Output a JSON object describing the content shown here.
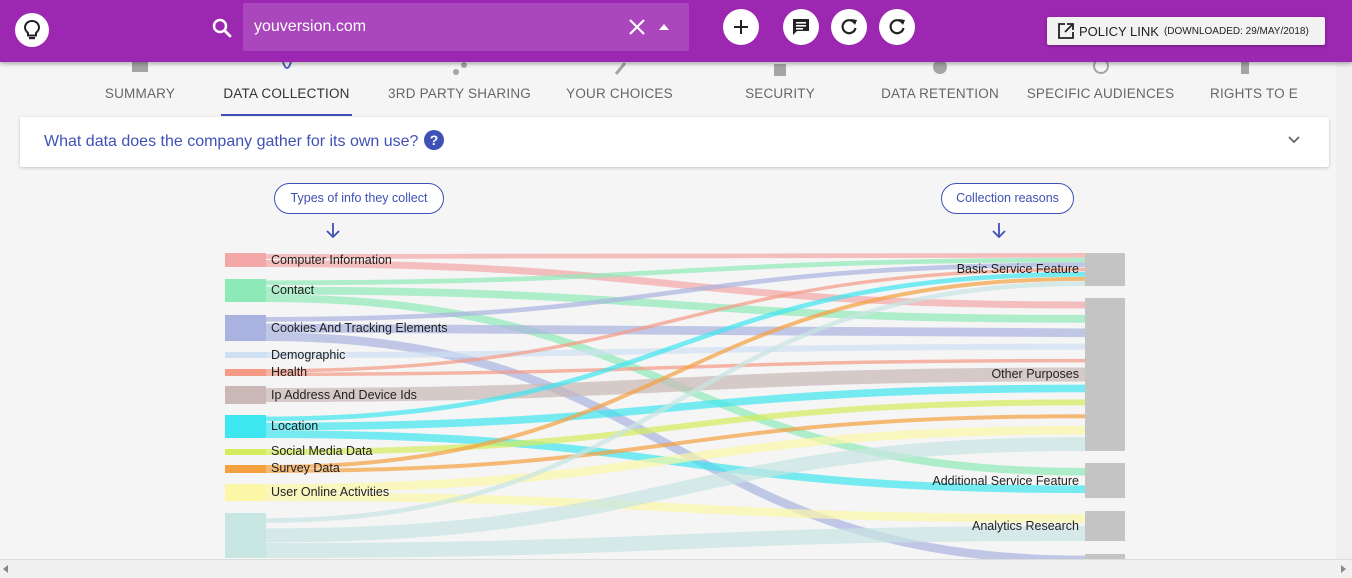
{
  "search": {
    "value": "youversion.com"
  },
  "policy": {
    "label": "POLICY LINK",
    "downloaded": "(DOWNLOADED: 29/MAY/2018)"
  },
  "tabs": [
    {
      "label": "SUMMARY",
      "active": false
    },
    {
      "label": "DATA COLLECTION",
      "active": true
    },
    {
      "label": "3RD PARTY SHARING",
      "active": false
    },
    {
      "label": "YOUR CHOICES",
      "active": false
    },
    {
      "label": "SECURITY",
      "active": false
    },
    {
      "label": "DATA RETENTION",
      "active": false
    },
    {
      "label": "SPECIFIC AUDIENCES",
      "active": false
    },
    {
      "label": "RIGHTS TO E",
      "active": false
    }
  ],
  "question": {
    "text": "What data does the company gather for its own use?",
    "help": "?"
  },
  "pills": {
    "left": "Types of info they collect",
    "right": "Collection reasons"
  },
  "colors": {
    "accent": "#3f51b5",
    "topbar": "#9c27b0",
    "searchbox": "#ab47bc"
  },
  "chart_data": {
    "type": "sankey",
    "sources": [
      {
        "name": "Computer Information",
        "color": "#f4a7a7"
      },
      {
        "name": "Contact",
        "color": "#8ee9b8"
      },
      {
        "name": "Cookies And Tracking Elements",
        "color": "#aab3e0"
      },
      {
        "name": "Demographic",
        "color": "#cfe0f2"
      },
      {
        "name": "Health",
        "color": "#f59a85"
      },
      {
        "name": "Ip Address And Device Ids",
        "color": "#c9b8b6"
      },
      {
        "name": "Location",
        "color": "#3ee6f0"
      },
      {
        "name": "Social Media Data",
        "color": "#d4ec5c"
      },
      {
        "name": "Survey Data",
        "color": "#f5a040"
      },
      {
        "name": "User Online Activities",
        "color": "#fbf7a6"
      },
      {
        "name": "",
        "color": "#c7e6e2"
      }
    ],
    "targets": [
      {
        "name": "Basic Service Feature"
      },
      {
        "name": "Other Purposes"
      },
      {
        "name": "Additional Service Feature"
      },
      {
        "name": "Analytics Research"
      },
      {
        "name": ""
      }
    ],
    "links": [
      {
        "source": 0,
        "target": 0
      },
      {
        "source": 0,
        "target": 1
      },
      {
        "source": 1,
        "target": 0
      },
      {
        "source": 1,
        "target": 1
      },
      {
        "source": 1,
        "target": 2
      },
      {
        "source": 2,
        "target": 0
      },
      {
        "source": 2,
        "target": 1
      },
      {
        "source": 2,
        "target": 4
      },
      {
        "source": 3,
        "target": 1
      },
      {
        "source": 4,
        "target": 0
      },
      {
        "source": 4,
        "target": 1
      },
      {
        "source": 5,
        "target": 1
      },
      {
        "source": 6,
        "target": 0
      },
      {
        "source": 6,
        "target": 1
      },
      {
        "source": 6,
        "target": 2
      },
      {
        "source": 7,
        "target": 1
      },
      {
        "source": 8,
        "target": 0
      },
      {
        "source": 8,
        "target": 1
      },
      {
        "source": 9,
        "target": 1
      },
      {
        "source": 9,
        "target": 3
      },
      {
        "source": 10,
        "target": 0
      },
      {
        "source": 10,
        "target": 1
      },
      {
        "source": 10,
        "target": 3
      }
    ]
  }
}
